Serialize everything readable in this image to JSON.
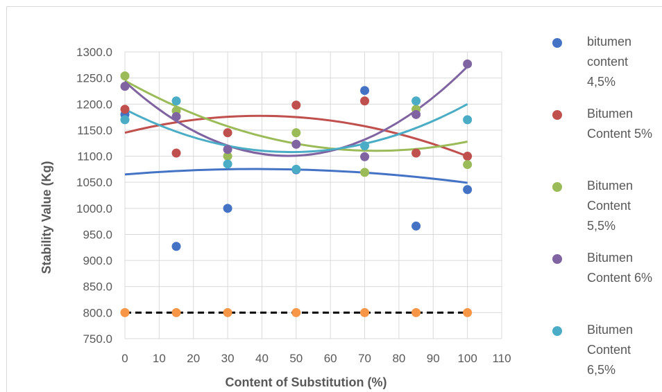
{
  "chart_data": {
    "type": "scatter",
    "xlabel": "Content of Substitution (%)",
    "ylabel": "Stability Value  (Kg)",
    "xlim": [
      0,
      110
    ],
    "ylim": [
      750,
      1300
    ],
    "x_ticks": [
      "0",
      "10",
      "20",
      "30",
      "40",
      "50",
      "60",
      "70",
      "80",
      "90",
      "100",
      "110"
    ],
    "y_ticks": [
      "750.0",
      "800.0",
      "850.0",
      "900.0",
      "950.0",
      "1000.0",
      "1050.0",
      "1100.0",
      "1150.0",
      "1200.0",
      "1250.0",
      "1300.0"
    ],
    "grid": true,
    "legend_position": "right",
    "trendline": "polynomial order 2",
    "series": [
      {
        "name": "bitumen content 4,5%",
        "color": "#4472c4",
        "x": [
          0,
          15,
          30,
          50,
          70,
          85,
          100
        ],
        "y": [
          1180,
          927,
          1000,
          1074,
          1226,
          966,
          1036
        ],
        "trend": [
          1065,
          1074.5,
          1049
        ]
      },
      {
        "name": "Bitumen Content 5%",
        "color": "#c0504d",
        "x": [
          0,
          15,
          30,
          50,
          70,
          85,
          100
        ],
        "y": [
          1190,
          1106,
          1145,
          1198,
          1206,
          1106,
          1100
        ],
        "trend": [
          1145,
          1175,
          1100
        ]
      },
      {
        "name": "Bitumen Content 5,5%",
        "color": "#9bbb59",
        "x": [
          0,
          15,
          30,
          50,
          70,
          85,
          100
        ],
        "y": [
          1254,
          1187,
          1100,
          1145,
          1069,
          1190,
          1084
        ],
        "trend": [
          1245,
          1124,
          1128
        ]
      },
      {
        "name": "Bitumen Content 6%",
        "color": "#8064a2",
        "x": [
          0,
          15,
          30,
          50,
          70,
          85,
          100
        ],
        "y": [
          1234,
          1176,
          1113,
          1123,
          1099,
          1180,
          1277
        ],
        "trend": [
          1243,
          1101,
          1272
        ]
      },
      {
        "name": "Bitumen Content 6,5%",
        "color": "#4bacc6",
        "x": [
          0,
          15,
          30,
          50,
          70,
          85,
          100
        ],
        "y": [
          1170,
          1206,
          1085,
          1075,
          1120,
          1206,
          1170
        ],
        "trend": [
          1190,
          1108,
          1200
        ]
      },
      {
        "name": "",
        "color": "#f79646",
        "show_in_legend": false,
        "reference_line": "dashed",
        "x": [
          0,
          15,
          30,
          50,
          70,
          85,
          100
        ],
        "y": [
          800,
          800,
          800,
          800,
          800,
          800,
          800
        ]
      }
    ]
  }
}
